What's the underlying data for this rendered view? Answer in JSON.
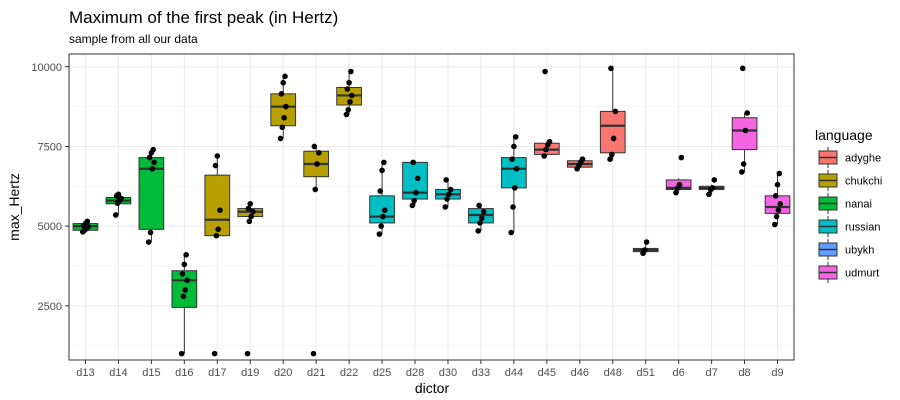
{
  "chart_data": {
    "type": "boxplot",
    "title": "Maximum of the first peak (in Hertz)",
    "subtitle": "sample from all our data",
    "xlabel": "dictor",
    "ylabel": "max_Hertz",
    "ylim": [
      800,
      10400
    ],
    "yticks": [
      2500,
      5000,
      7500,
      10000
    ],
    "yticklabels": [
      "2500",
      "5000",
      "7500",
      "10000"
    ],
    "grid": true,
    "legend": {
      "title": "language",
      "position": "right",
      "entries": [
        {
          "label": "adyghe",
          "color": "#F8766D"
        },
        {
          "label": "chukchi",
          "color": "#B79F00"
        },
        {
          "label": "nanai",
          "color": "#00BA38"
        },
        {
          "label": "russian",
          "color": "#00BFC4"
        },
        {
          "label": "ubykh",
          "color": "#619CFF"
        },
        {
          "label": "udmurt",
          "color": "#F564E3"
        }
      ]
    },
    "categories": [
      "d13",
      "d14",
      "d15",
      "d16",
      "d17",
      "d19",
      "d20",
      "d21",
      "d22",
      "d25",
      "d28",
      "d30",
      "d33",
      "d44",
      "d45",
      "d46",
      "d48",
      "d51",
      "d6",
      "d7",
      "d8",
      "d9"
    ],
    "boxes": [
      {
        "dictor": "d13",
        "language": "nanai",
        "q1": 4870,
        "median": 5000,
        "q3": 5080,
        "wlo": 4800,
        "whi": 5150,
        "points": [
          4820,
          4870,
          4920,
          4980,
          5020,
          5080,
          5150
        ]
      },
      {
        "dictor": "d14",
        "language": "nanai",
        "q1": 5700,
        "median": 5800,
        "q3": 5900,
        "wlo": 5350,
        "whi": 6000,
        "points": [
          5350,
          5720,
          5800,
          5870,
          5950,
          6000
        ]
      },
      {
        "dictor": "d15",
        "language": "nanai",
        "q1": 4900,
        "median": 6800,
        "q3": 7150,
        "wlo": 4500,
        "whi": 7400,
        "points": [
          4500,
          4800,
          6800,
          7000,
          7150,
          7300,
          7400
        ]
      },
      {
        "dictor": "d16",
        "language": "nanai",
        "q1": 2450,
        "median": 3300,
        "q3": 3600,
        "wlo": 1000,
        "whi": 4100,
        "points": [
          1000,
          2800,
          3000,
          3300,
          3500,
          3800,
          4100
        ]
      },
      {
        "dictor": "d17",
        "language": "chukchi",
        "q1": 4700,
        "median": 5200,
        "q3": 6600,
        "wlo": 4700,
        "whi": 7200,
        "points": [
          1000,
          4700,
          4900,
          5500,
          6900,
          7200
        ]
      },
      {
        "dictor": "d19",
        "language": "chukchi",
        "q1": 5300,
        "median": 5450,
        "q3": 5550,
        "wlo": 5150,
        "whi": 5700,
        "points": [
          1000,
          5150,
          5300,
          5450,
          5550,
          5700
        ]
      },
      {
        "dictor": "d20",
        "language": "chukchi",
        "q1": 8150,
        "median": 8750,
        "q3": 9150,
        "wlo": 7750,
        "whi": 9700,
        "points": [
          7750,
          8100,
          8400,
          8750,
          9150,
          9500,
          9700
        ]
      },
      {
        "dictor": "d21",
        "language": "chukchi",
        "q1": 6550,
        "median": 6950,
        "q3": 7350,
        "wlo": 6150,
        "whi": 7500,
        "points": [
          1000,
          6150,
          6950,
          7300,
          7500
        ]
      },
      {
        "dictor": "d22",
        "language": "chukchi",
        "q1": 8800,
        "median": 9100,
        "q3": 9350,
        "wlo": 8500,
        "whi": 9850,
        "points": [
          8500,
          8650,
          8900,
          9100,
          9300,
          9500,
          9850
        ]
      },
      {
        "dictor": "d25",
        "language": "russian",
        "q1": 5100,
        "median": 5300,
        "q3": 5950,
        "wlo": 4750,
        "whi": 7000,
        "points": [
          4750,
          5000,
          5300,
          5500,
          6100,
          6750,
          7000
        ]
      },
      {
        "dictor": "d28",
        "language": "russian",
        "q1": 5850,
        "median": 6050,
        "q3": 7000,
        "wlo": 5650,
        "whi": 7000,
        "points": [
          5650,
          5800,
          6050,
          6500,
          7000
        ]
      },
      {
        "dictor": "d30",
        "language": "russian",
        "q1": 5850,
        "median": 6000,
        "q3": 6150,
        "wlo": 5600,
        "whi": 6450,
        "points": [
          5600,
          5850,
          6000,
          6150,
          6450
        ]
      },
      {
        "dictor": "d33",
        "language": "russian",
        "q1": 5100,
        "median": 5350,
        "q3": 5550,
        "wlo": 4850,
        "whi": 5650,
        "points": [
          4850,
          5100,
          5250,
          5450,
          5650
        ]
      },
      {
        "dictor": "d44",
        "language": "russian",
        "q1": 6200,
        "median": 6800,
        "q3": 7150,
        "wlo": 4800,
        "whi": 7800,
        "points": [
          4800,
          5600,
          6200,
          6800,
          7100,
          7500,
          7800
        ]
      },
      {
        "dictor": "d45",
        "language": "adyghe",
        "q1": 7250,
        "median": 7400,
        "q3": 7600,
        "wlo": 7200,
        "whi": 7650,
        "points": [
          7200,
          7400,
          7550,
          7650,
          9850
        ]
      },
      {
        "dictor": "d46",
        "language": "adyghe",
        "q1": 6850,
        "median": 6950,
        "q3": 7050,
        "wlo": 6800,
        "whi": 7100,
        "points": [
          6800,
          6900,
          7000,
          7100
        ]
      },
      {
        "dictor": "d48",
        "language": "adyghe",
        "q1": 7300,
        "median": 8150,
        "q3": 8600,
        "wlo": 7100,
        "whi": 9950,
        "points": [
          7100,
          7250,
          7750,
          8600,
          9950
        ]
      },
      {
        "dictor": "d51",
        "language": "ubykh",
        "q1": 4200,
        "median": 4250,
        "q3": 4300,
        "wlo": 4150,
        "whi": 4500,
        "points": [
          4150,
          4250,
          4500
        ]
      },
      {
        "dictor": "d6",
        "language": "udmurt",
        "q1": 6150,
        "median": 6200,
        "q3": 6450,
        "wlo": 6050,
        "whi": 6500,
        "points": [
          6050,
          6200,
          6300,
          7150
        ]
      },
      {
        "dictor": "d7",
        "language": "udmurt",
        "q1": 6150,
        "median": 6200,
        "q3": 6250,
        "wlo": 6000,
        "whi": 6300,
        "points": [
          6000,
          6150,
          6200,
          6450
        ]
      },
      {
        "dictor": "d8",
        "language": "udmurt",
        "q1": 7400,
        "median": 8000,
        "q3": 8400,
        "wlo": 6700,
        "whi": 8550,
        "points": [
          6700,
          6950,
          8000,
          8550,
          9950
        ]
      },
      {
        "dictor": "d9",
        "language": "udmurt",
        "q1": 5400,
        "median": 5600,
        "q3": 5950,
        "wlo": 5050,
        "whi": 6650,
        "points": [
          5050,
          5300,
          5500,
          5700,
          5950,
          6300,
          6650
        ]
      }
    ]
  }
}
